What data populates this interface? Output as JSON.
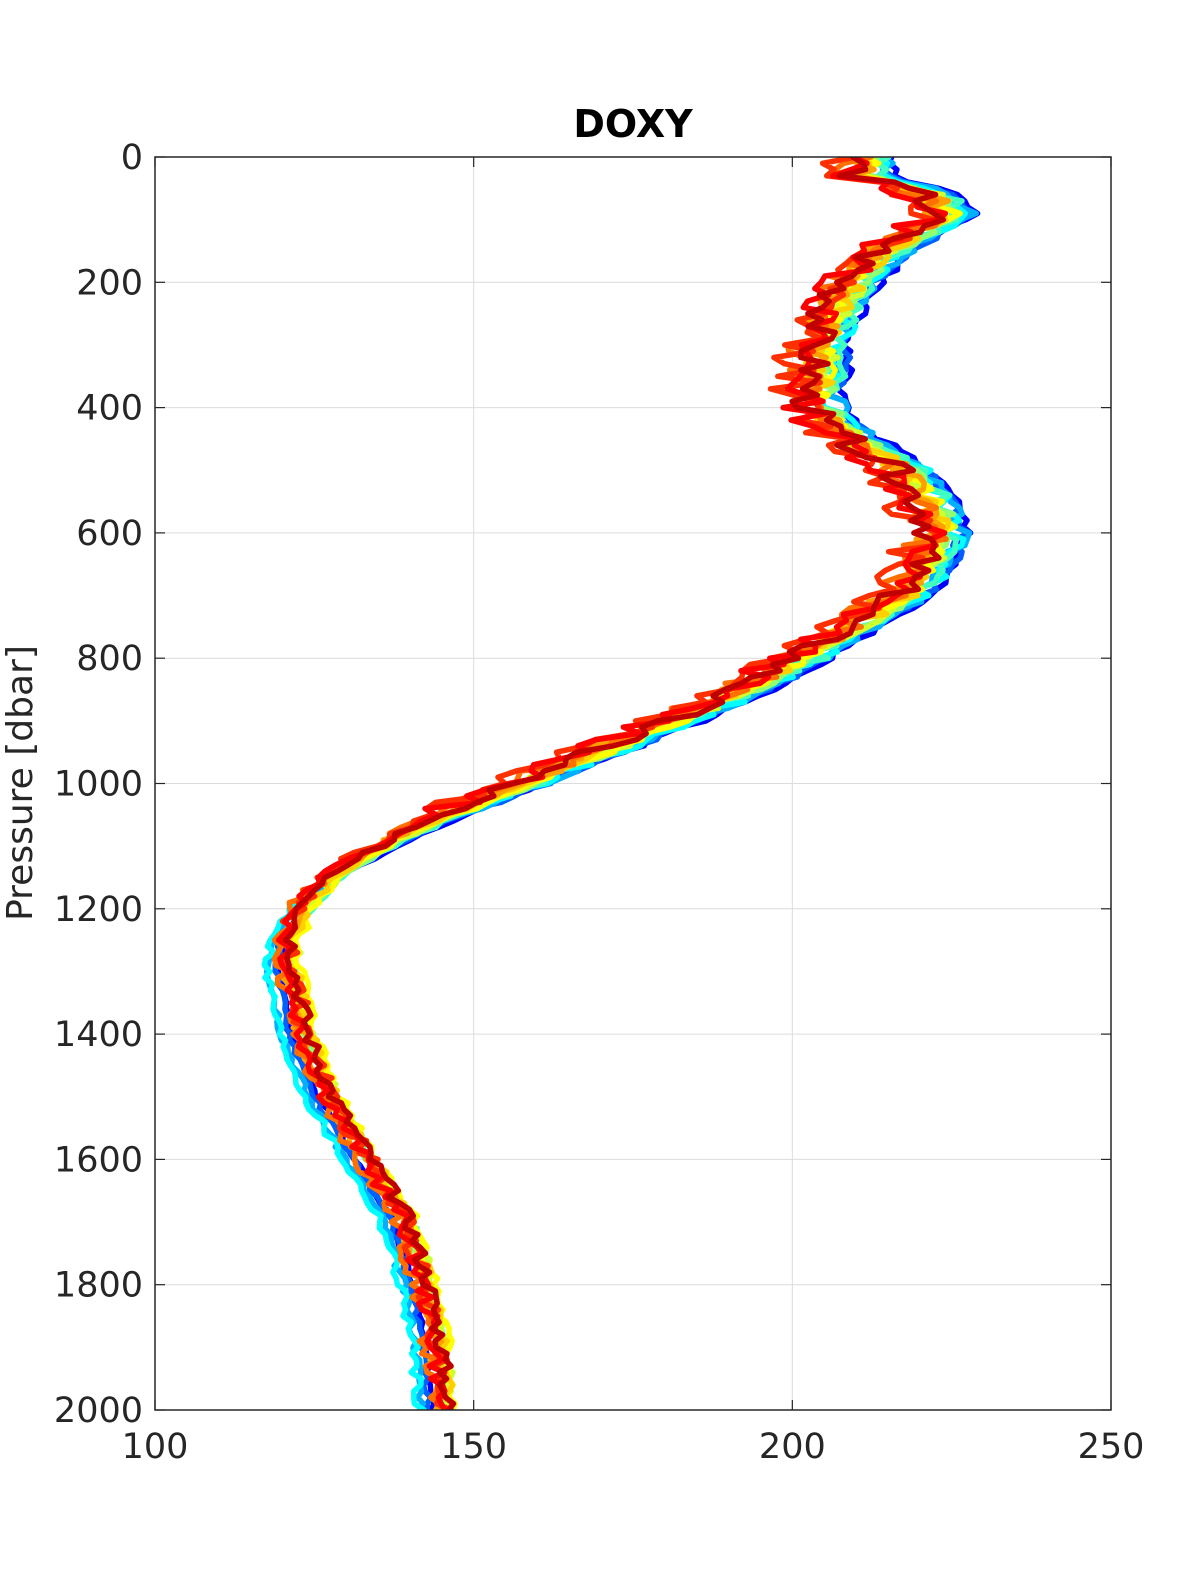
{
  "chart_data": {
    "type": "line",
    "title": "DOXY",
    "xlabel": "",
    "ylabel": "Pressure [dbar]",
    "xlim": [
      100,
      250
    ],
    "ylim": [
      0,
      2000
    ],
    "y_reversed": true,
    "grid": true,
    "x_ticks": [
      100,
      150,
      200,
      250
    ],
    "x_tick_labels": [
      "100",
      "150",
      "200",
      "250"
    ],
    "y_ticks": [
      0,
      200,
      400,
      600,
      800,
      1000,
      1200,
      1400,
      1600,
      1800,
      2000
    ],
    "y_tick_labels": [
      "0",
      "200",
      "400",
      "600",
      "800",
      "1000",
      "1200",
      "1400",
      "1600",
      "1800",
      "2000"
    ],
    "colormap": [
      "#0000ff",
      "#0060ff",
      "#00b0ff",
      "#00ffff",
      "#40ffc0",
      "#90ff70",
      "#d0ff30",
      "#ffff00",
      "#ffd000",
      "#ffa000",
      "#ff7000",
      "#ff3000",
      "#ff0000",
      "#c00000"
    ],
    "base_profile": {
      "pressure": [
        0,
        30,
        60,
        90,
        120,
        160,
        200,
        250,
        300,
        350,
        380,
        420,
        460,
        500,
        550,
        600,
        650,
        700,
        750,
        800,
        850,
        900,
        950,
        1000,
        1050,
        1100,
        1150,
        1200,
        1250,
        1300,
        1350,
        1400,
        1500,
        1600,
        1700,
        1800,
        1900,
        2000
      ],
      "doxy": [
        212,
        212,
        222,
        225,
        220,
        214,
        210,
        207,
        205,
        205,
        204,
        206,
        212,
        218,
        222,
        224,
        222,
        218,
        210,
        202,
        193,
        182,
        170,
        158,
        146,
        136,
        128,
        123,
        121,
        121,
        122,
        123,
        127,
        133,
        139,
        142,
        144,
        145
      ]
    },
    "series": [
      {
        "color": "#0000ff",
        "offset": 3.5,
        "low_offset": -1.5,
        "noise": 1.0
      },
      {
        "color": "#0060ff",
        "offset": 3.0,
        "low_offset": -2.0,
        "noise": 1.2
      },
      {
        "color": "#00b0ff",
        "offset": 2.5,
        "low_offset": -3.0,
        "noise": 1.5
      },
      {
        "color": "#00ffff",
        "offset": 2.0,
        "low_offset": -3.5,
        "noise": 2.0
      },
      {
        "color": "#40ffc0",
        "offset": 1.2,
        "low_offset": 1.0,
        "noise": 2.5
      },
      {
        "color": "#90ff70",
        "offset": 0.5,
        "low_offset": 0.5,
        "noise": 2.0
      },
      {
        "color": "#d0ff30",
        "offset": 0.0,
        "low_offset": 1.5,
        "noise": 2.2
      },
      {
        "color": "#ffff00",
        "offset": -0.5,
        "low_offset": 2.0,
        "noise": 2.5
      },
      {
        "color": "#ffd000",
        "offset": -1.0,
        "low_offset": 1.0,
        "noise": 2.8
      },
      {
        "color": "#ffa000",
        "offset": -1.5,
        "low_offset": 0.0,
        "noise": 3.0
      },
      {
        "color": "#ff7000",
        "offset": -2.5,
        "low_offset": -1.0,
        "noise": 3.5
      },
      {
        "color": "#ff3000",
        "offset": -4.0,
        "low_offset": 0.5,
        "noise": 4.0
      },
      {
        "color": "#ff0000",
        "offset": -3.0,
        "low_offset": 0.0,
        "noise": 3.5
      },
      {
        "color": "#c00000",
        "offset": -2.0,
        "low_offset": 1.0,
        "noise": 3.0
      }
    ]
  }
}
